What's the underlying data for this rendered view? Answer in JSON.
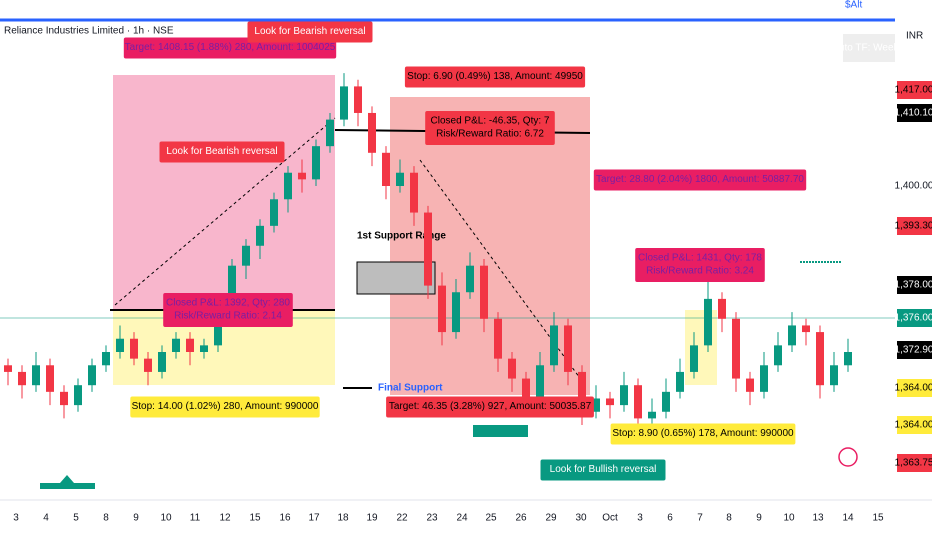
{
  "header": {
    "title": "Reliance Industries Limited · 1h · NSE",
    "currency": "INR",
    "corner": "$Alt",
    "auto_tf": "Auto TF: Weekly"
  },
  "annotations": [
    {
      "lines": [
        "Target: 1408.15 (1.88%) 280, Amount: 1004025"
      ],
      "bg": "#e91e63",
      "fg": "#7b1fa2"
    },
    {
      "lines": [
        "Look for Bearish reversal"
      ],
      "bg": "#f23645",
      "fg": "#ffffff"
    },
    {
      "lines": [
        "Stop: 6.90 (0.49%) 138, Amount: 49950"
      ],
      "bg": "#f23645",
      "fg": "#000000"
    },
    {
      "lines": [
        "Closed P&L: -46.35, Qty: 7",
        "Risk/Reward Ratio: 6.72"
      ],
      "bg": "#f23645",
      "fg": "#000000"
    },
    {
      "lines": [
        "Look for Bearish reversal"
      ],
      "bg": "#f23645",
      "fg": "#ffffff"
    },
    {
      "lines": [
        "Closed P&L: 1392, Qty: 280",
        "Risk/Reward Ratio: 2.14"
      ],
      "bg": "#e91e63",
      "fg": "#7b1fa2"
    },
    {
      "lines": [
        "Stop: 14.00 (1.02%) 280, Amount: 990000"
      ],
      "bg": "#ffeb3b",
      "fg": "#000000"
    },
    {
      "lines": [
        "Target: 46.35 (3.28%) 927, Amount: 50035.87"
      ],
      "bg": "#f23645",
      "fg": "#000000"
    },
    {
      "lines": [
        "Target: 28.80 (2.04%) 1800, Amount: 50887.70"
      ],
      "bg": "#e91e63",
      "fg": "#7b1fa2"
    },
    {
      "lines": [
        "Closed P&L: 1431, Qty: 178",
        "Risk/Reward Ratio: 3.24"
      ],
      "bg": "#e91e63",
      "fg": "#7b1fa2"
    },
    {
      "lines": [
        "Stop: 8.90 (0.65%) 178, Amount: 990000"
      ],
      "bg": "#ffeb3b",
      "fg": "#000000"
    },
    {
      "lines": [
        "Look for Bullish reversal"
      ],
      "bg": "#089981",
      "fg": "#ffffff"
    }
  ],
  "levels": [
    {
      "text": "1st Support Range",
      "color": "#000000"
    },
    {
      "text": "Final Support",
      "color": "#2962ff"
    }
  ],
  "price_labels": [
    {
      "text": "1,417.00",
      "bg": "#f23645",
      "fg": "#000000"
    },
    {
      "text": "1,410.10",
      "bg": "#000000",
      "fg": "#ffffff"
    },
    {
      "text": "1,400.00",
      "bg": "#ffffff",
      "fg": "#131722"
    },
    {
      "text": "1,393.30",
      "bg": "#f23645",
      "fg": "#000000"
    },
    {
      "text": "1,378.00",
      "bg": "#000000",
      "fg": "#ffffff"
    },
    {
      "text": "1,376.00",
      "bg": "#089981",
      "fg": "#ffffff"
    },
    {
      "text": "1,372.90",
      "bg": "#000000",
      "fg": "#ffffff"
    },
    {
      "text": "1,364.00",
      "bg": "#ffeb3b",
      "fg": "#000000"
    },
    {
      "text": "1,364.00",
      "bg": "#ffeb3b",
      "fg": "#000000"
    },
    {
      "text": "1,363.75",
      "bg": "#f23645",
      "fg": "#000000"
    }
  ],
  "date_labels": [
    "3",
    "4",
    "5",
    "8",
    "9",
    "10",
    "11",
    "12",
    "15",
    "16",
    "17",
    "18",
    "19",
    "22",
    "23",
    "24",
    "25",
    "26",
    "29",
    "30",
    "Oct",
    "3",
    "6",
    "7",
    "8",
    "9",
    "10",
    "13",
    "14",
    "15"
  ],
  "candles": [
    [
      1373,
      1374,
      1370,
      1372
    ],
    [
      1372,
      1373,
      1368,
      1370
    ],
    [
      1370,
      1375,
      1369,
      1373
    ],
    [
      1373,
      1374,
      1367,
      1369
    ],
    [
      1369,
      1370,
      1365,
      1367
    ],
    [
      1367,
      1371,
      1366,
      1370
    ],
    [
      1370,
      1374,
      1369,
      1373
    ],
    [
      1373,
      1376,
      1372,
      1375
    ],
    [
      1375,
      1379,
      1374,
      1377
    ],
    [
      1377,
      1378,
      1373,
      1374
    ],
    [
      1374,
      1375,
      1370,
      1372
    ],
    [
      1372,
      1376,
      1371,
      1375
    ],
    [
      1375,
      1378,
      1374,
      1377
    ],
    [
      1377,
      1378,
      1373,
      1375
    ],
    [
      1375,
      1377,
      1374,
      1376
    ],
    [
      1376,
      1382,
      1375,
      1381
    ],
    [
      1381,
      1389,
      1380,
      1388
    ],
    [
      1388,
      1392,
      1386,
      1391
    ],
    [
      1391,
      1395,
      1389,
      1394
    ],
    [
      1394,
      1399,
      1393,
      1398
    ],
    [
      1398,
      1403,
      1396,
      1402
    ],
    [
      1402,
      1404,
      1399,
      1401
    ],
    [
      1401,
      1407,
      1400,
      1406
    ],
    [
      1406,
      1411,
      1405,
      1410
    ],
    [
      1410,
      1417,
      1409,
      1415
    ],
    [
      1415,
      1416,
      1409,
      1411
    ],
    [
      1411,
      1412,
      1403,
      1405
    ],
    [
      1405,
      1406,
      1398,
      1400
    ],
    [
      1400,
      1404,
      1399,
      1402
    ],
    [
      1402,
      1403,
      1394,
      1396
    ],
    [
      1396,
      1397,
      1383,
      1385
    ],
    [
      1385,
      1387,
      1376,
      1378
    ],
    [
      1378,
      1386,
      1377,
      1384
    ],
    [
      1384,
      1390,
      1383,
      1388
    ],
    [
      1388,
      1389,
      1378,
      1380
    ],
    [
      1380,
      1381,
      1372,
      1374
    ],
    [
      1374,
      1375,
      1369,
      1371
    ],
    [
      1371,
      1372,
      1366,
      1368
    ],
    [
      1368,
      1375,
      1367,
      1373
    ],
    [
      1373,
      1381,
      1372,
      1379
    ],
    [
      1379,
      1380,
      1370,
      1372
    ],
    [
      1372,
      1373,
      1364,
      1366
    ],
    [
      1366,
      1370,
      1365,
      1368
    ],
    [
      1368,
      1369,
      1365,
      1367
    ],
    [
      1367,
      1372,
      1366,
      1370
    ],
    [
      1370,
      1371,
      1363,
      1365
    ],
    [
      1365,
      1368,
      1364,
      1366
    ],
    [
      1366,
      1371,
      1365,
      1369
    ],
    [
      1369,
      1374,
      1368,
      1372
    ],
    [
      1372,
      1378,
      1371,
      1376
    ],
    [
      1376,
      1386,
      1375,
      1383
    ],
    [
      1383,
      1384,
      1378,
      1380
    ],
    [
      1380,
      1381,
      1369,
      1371
    ],
    [
      1371,
      1372,
      1367,
      1369
    ],
    [
      1369,
      1375,
      1368,
      1373
    ],
    [
      1373,
      1378,
      1372,
      1376
    ],
    [
      1376,
      1381,
      1375,
      1379
    ],
    [
      1379,
      1380,
      1376,
      1378
    ],
    [
      1378,
      1379,
      1368,
      1370
    ],
    [
      1370,
      1375,
      1369,
      1373
    ],
    [
      1373,
      1377,
      1372,
      1375
    ]
  ],
  "colors": {
    "up": "#089981",
    "down": "#f23645"
  }
}
